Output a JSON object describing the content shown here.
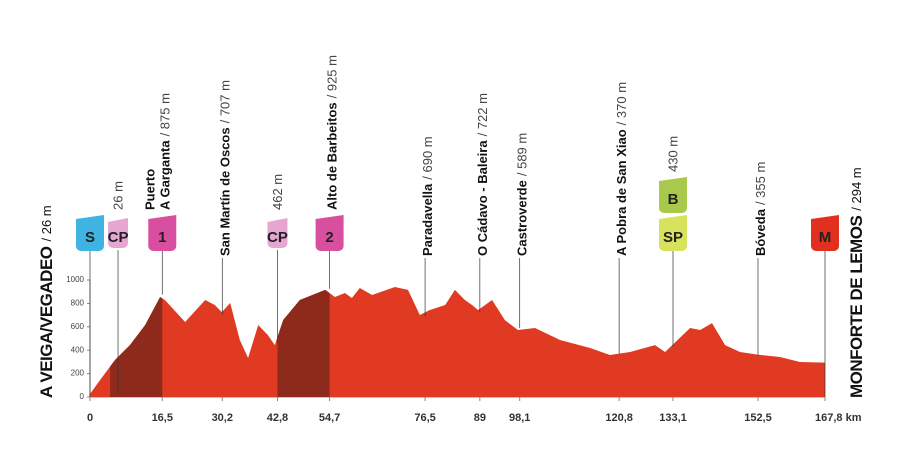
{
  "chart_data": {
    "type": "area",
    "start": {
      "name": "A VEIGA/VEGADEO",
      "alt": {
        "value": 26,
        "label": "/ 26 m"
      }
    },
    "finish": {
      "name": "MONFORTE DE LEMOS",
      "alt": {
        "value": 294,
        "label": "/ 294 m"
      }
    },
    "x": [
      0,
      2.3,
      5.7,
      9.1,
      12.6,
      16.0,
      17.1,
      21.7,
      26.3,
      28.5,
      30.1,
      32.0,
      34.2,
      36.1,
      38.4,
      40.6,
      42.2,
      44.1,
      47.9,
      53.7,
      55.9,
      58.2,
      59.8,
      61.6,
      64.4,
      69.6,
      72.6,
      75.3,
      77.6,
      81.1,
      83.3,
      85.6,
      87.2,
      88.6,
      91.8,
      94.7,
      97.7,
      101.6,
      107.3,
      114.2,
      118.7,
      123.3,
      129.0,
      131.3,
      137.0,
      139.3,
      142.0,
      145.0,
      148.4,
      153.0,
      157.5,
      162.1,
      167.8
    ],
    "values": [
      26,
      145,
      316,
      444,
      615,
      855,
      829,
      641,
      829,
      786,
      726,
      803,
      487,
      333,
      615,
      530,
      444,
      658,
      829,
      915,
      855,
      889,
      846,
      932,
      872,
      940,
      915,
      701,
      744,
      786,
      915,
      829,
      786,
      744,
      829,
      658,
      573,
      590,
      487,
      419,
      359,
      385,
      444,
      385,
      590,
      573,
      632,
      444,
      385,
      359,
      342,
      299,
      294
    ],
    "color": "#e03a22",
    "climb_color": "#8e2a1c",
    "climbs": [
      {
        "from": 4.6,
        "to": 16.5
      },
      {
        "from": 42.8,
        "to": 54.7
      }
    ],
    "xlim": [
      0,
      167.8
    ],
    "ylim": [
      0,
      1000
    ],
    "yticks": [
      0,
      200,
      400,
      600,
      800,
      1000
    ],
    "xticks": [
      0,
      {
        "value": 16.5,
        "label": "16,5"
      },
      {
        "value": 30.2,
        "label": "30,2"
      },
      {
        "value": 42.8,
        "label": "42,8"
      },
      {
        "value": 54.7,
        "label": "54,7"
      },
      {
        "value": 76.5,
        "label": "76,5"
      },
      89,
      {
        "value": 98.1,
        "label": "98,1"
      },
      {
        "value": 120.8,
        "label": "120,8"
      },
      {
        "value": 133.1,
        "label": "133,1"
      },
      {
        "value": 152.5,
        "label": "152,5"
      },
      {
        "value": 167.8,
        "label": "167,8 km"
      }
    ],
    "waypoints": [
      {
        "x": 0,
        "badges": [
          {
            "text": "S",
            "color": "#3fb4e2",
            "text_color": "#ffffff"
          }
        ]
      },
      {
        "x": 6.4,
        "alt": {
          "value": 26,
          "label": "26 m"
        },
        "badges": [
          {
            "text": "CP",
            "color": "#e7a6d2",
            "text_color": "#5a2a4e"
          }
        ]
      },
      {
        "x": 16.5,
        "name": [
          "Puerto",
          "A Garganta"
        ],
        "alt": {
          "value": 875,
          "label": "/ 875 m"
        },
        "badges": [
          {
            "text": "1",
            "color": "#d84fa0",
            "text_color": "#ffffff"
          }
        ]
      },
      {
        "x": 30.2,
        "name": [
          "San Martín de Oscos"
        ],
        "alt": {
          "value": 707,
          "label": "/ 707 m"
        }
      },
      {
        "x": 42.8,
        "alt": {
          "value": 462,
          "label": "462 m"
        },
        "badges": [
          {
            "text": "CP",
            "color": "#e7a6d2",
            "text_color": "#5a2a4e"
          }
        ]
      },
      {
        "x": 54.7,
        "name": [
          "Alto de Barbeitos"
        ],
        "alt": {
          "value": 925,
          "label": "/ 925 m"
        },
        "badges": [
          {
            "text": "2",
            "color": "#d84fa0",
            "text_color": "#ffffff"
          }
        ]
      },
      {
        "x": 76.5,
        "name": [
          "Paradavella"
        ],
        "alt": {
          "value": 690,
          "label": "/ 690 m"
        }
      },
      {
        "x": 89,
        "name": [
          "O Cádavo - Baleira"
        ],
        "alt": {
          "value": 722,
          "label": "/ 722 m"
        }
      },
      {
        "x": 98.1,
        "name": [
          "Castroverde"
        ],
        "alt": {
          "value": 589,
          "label": "/ 589 m"
        }
      },
      {
        "x": 120.8,
        "name": [
          "A Pobra de San Xiao"
        ],
        "alt": {
          "value": 370,
          "label": "/ 370 m"
        }
      },
      {
        "x": 133.1,
        "alt": {
          "value": 430,
          "label": "430 m"
        },
        "badges": [
          {
            "text": "B",
            "color": "#a9c94c",
            "text_color": "#ffffff"
          },
          {
            "text": "SP",
            "color": "#d7e35c",
            "text_color": "#3a3a10"
          }
        ]
      },
      {
        "x": 152.5,
        "name": [
          "Bóveda"
        ],
        "alt": {
          "value": 355,
          "label": "/ 355 m"
        }
      },
      {
        "x": 167.8,
        "badges": [
          {
            "text": "M",
            "color": "#e2301e",
            "text_color": "#ffffff"
          }
        ]
      }
    ]
  }
}
